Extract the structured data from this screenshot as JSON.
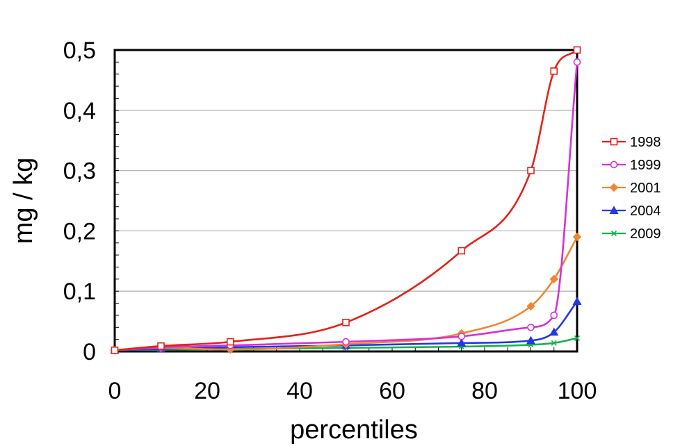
{
  "chart_data": {
    "type": "line",
    "title": "",
    "xlabel": "percentiles",
    "ylabel": "mg / kg",
    "xlim": [
      0,
      100
    ],
    "ylim": [
      0,
      0.5
    ],
    "x": [
      0,
      10,
      25,
      50,
      75,
      90,
      95,
      100
    ],
    "xticks": [
      0,
      20,
      40,
      60,
      80,
      100
    ],
    "xtick_labels": [
      "0",
      "20",
      "40",
      "60",
      "80",
      "100"
    ],
    "yticks": [
      0,
      0.1,
      0.2,
      0.3,
      0.4,
      0.5
    ],
    "ytick_labels": [
      "0",
      "0,1",
      "0,2",
      "0,3",
      "0,4",
      "0,5"
    ],
    "grid": "horizontal",
    "legend_position": "right",
    "series": [
      {
        "name": "1998",
        "color": "#e32119",
        "marker": "square-open",
        "values": [
          0.002,
          0.009,
          0.016,
          0.048,
          0.167,
          0.3,
          0.465,
          0.5
        ]
      },
      {
        "name": "1999",
        "color": "#d631d6",
        "marker": "circle-open",
        "values": [
          0.002,
          0.007,
          0.01,
          0.016,
          0.025,
          0.04,
          0.06,
          0.48
        ]
      },
      {
        "name": "2001",
        "color": "#f0862e",
        "marker": "diamond-filled",
        "values": [
          0.002,
          0.006,
          0.003,
          0.012,
          0.03,
          0.075,
          0.12,
          0.19
        ]
      },
      {
        "name": "2004",
        "color": "#2339e0",
        "marker": "triangle-filled",
        "values": [
          0.002,
          0.004,
          0.007,
          0.01,
          0.014,
          0.018,
          0.032,
          0.083
        ]
      },
      {
        "name": "2009",
        "color": "#17b24a",
        "marker": "x",
        "values": [
          0.002,
          0.003,
          0.004,
          0.006,
          0.008,
          0.011,
          0.014,
          0.022
        ]
      }
    ]
  }
}
